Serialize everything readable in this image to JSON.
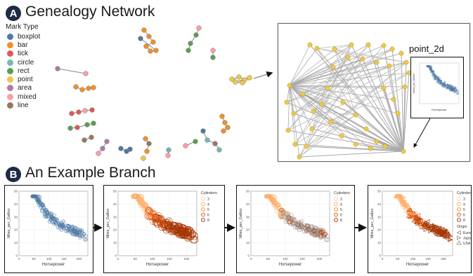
{
  "sectionA": {
    "badge": "A",
    "title": "Genealogy Network"
  },
  "sectionB": {
    "badge": "B",
    "title": "An Example Branch"
  },
  "legend": {
    "title": "Mark Type",
    "items": [
      {
        "label": "boxplot",
        "color": "#4e79a7"
      },
      {
        "label": "bar",
        "color": "#f28e2b"
      },
      {
        "label": "tick",
        "color": "#e15759"
      },
      {
        "label": "circle",
        "color": "#76b7b2"
      },
      {
        "label": "rect",
        "color": "#59a14f"
      },
      {
        "label": "point",
        "color": "#edc948"
      },
      {
        "label": "area",
        "color": "#b07aa1"
      },
      {
        "label": "mixed",
        "color": "#ff9da7"
      },
      {
        "label": "line",
        "color": "#9c755f"
      }
    ]
  },
  "zoom": {
    "node_label": "point_2d"
  },
  "charts": {
    "x_axis_label": "Horsepower",
    "y_axis_label": "Miles_per_Gallon",
    "x_ticks": [
      "0",
      "50",
      "100",
      "150",
      "200"
    ],
    "y_ticks": [
      "0",
      "10",
      "20",
      "30",
      "40",
      "50"
    ],
    "cylinders_title": "Cylinders",
    "cylinders": [
      {
        "label": "3",
        "color": "#fdd49e"
      },
      {
        "label": "4",
        "color": "#fdae6b"
      },
      {
        "label": "5",
        "color": "#fd8d3c"
      },
      {
        "label": "6",
        "color": "#e6550d"
      },
      {
        "label": "8",
        "color": "#a63603"
      }
    ],
    "origin_title": "Origin",
    "origins": [
      {
        "label": "Europe"
      },
      {
        "label": "Japan"
      },
      {
        "label": "USA"
      }
    ]
  },
  "chart_data": [
    {
      "type": "scatter",
      "title": "",
      "xlabel": "Horsepower",
      "ylabel": "Miles_per_Gallon",
      "xlim": [
        0,
        230
      ],
      "ylim": [
        0,
        50
      ],
      "encoding": "plain blue circles"
    },
    {
      "type": "scatter",
      "title": "",
      "xlabel": "Horsepower",
      "ylabel": "Miles_per_Gallon",
      "xlim": [
        0,
        230
      ],
      "ylim": [
        0,
        50
      ],
      "encoding": "color & size by Cylinders"
    },
    {
      "type": "scatter",
      "title": "",
      "xlabel": "Horsepower",
      "ylabel": "Miles_per_Gallon",
      "xlim": [
        0,
        230
      ],
      "ylim": [
        0,
        50
      ],
      "encoding": "Cylinders highlighted, others gray"
    },
    {
      "type": "scatter",
      "title": "",
      "xlabel": "Horsepower",
      "ylabel": "Miles_per_Gallon",
      "xlim": [
        0,
        230
      ],
      "ylim": [
        0,
        50
      ],
      "encoding": "color by Cylinders, shape by Origin"
    }
  ]
}
